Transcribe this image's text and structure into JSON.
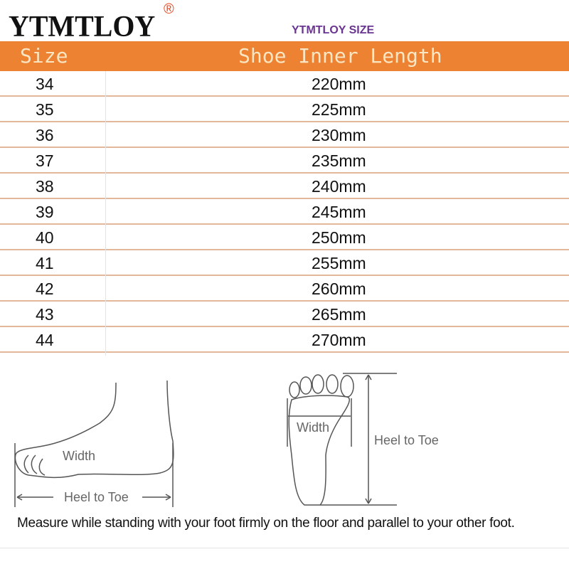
{
  "brand": {
    "name": "YTMTLOY",
    "registered_mark": "®"
  },
  "subtitle": "YTMTLOY SIZE",
  "table": {
    "headers": [
      "Size",
      "Shoe Inner Length"
    ],
    "rows": [
      {
        "size": "34",
        "length": "220mm"
      },
      {
        "size": "35",
        "length": "225mm"
      },
      {
        "size": "36",
        "length": "230mm"
      },
      {
        "size": "37",
        "length": "235mm"
      },
      {
        "size": "38",
        "length": "240mm"
      },
      {
        "size": "39",
        "length": "245mm"
      },
      {
        "size": "40",
        "length": "250mm"
      },
      {
        "size": "41",
        "length": "255mm"
      },
      {
        "size": "42",
        "length": "260mm"
      },
      {
        "size": "43",
        "length": "265mm"
      },
      {
        "size": "44",
        "length": "270mm"
      }
    ]
  },
  "diagram": {
    "side_width_label": "Width",
    "side_length_label": "Heel to Toe",
    "top_width_label": "Width",
    "top_length_label": "Heel to Toe"
  },
  "instruction": "Measure while standing with your foot firmly on the floor and parallel to your other foot.",
  "colors": {
    "header_bg": "#ec8232",
    "header_text": "#fbe6c4",
    "subtitle": "#6a3591",
    "registered": "#e8451e"
  }
}
